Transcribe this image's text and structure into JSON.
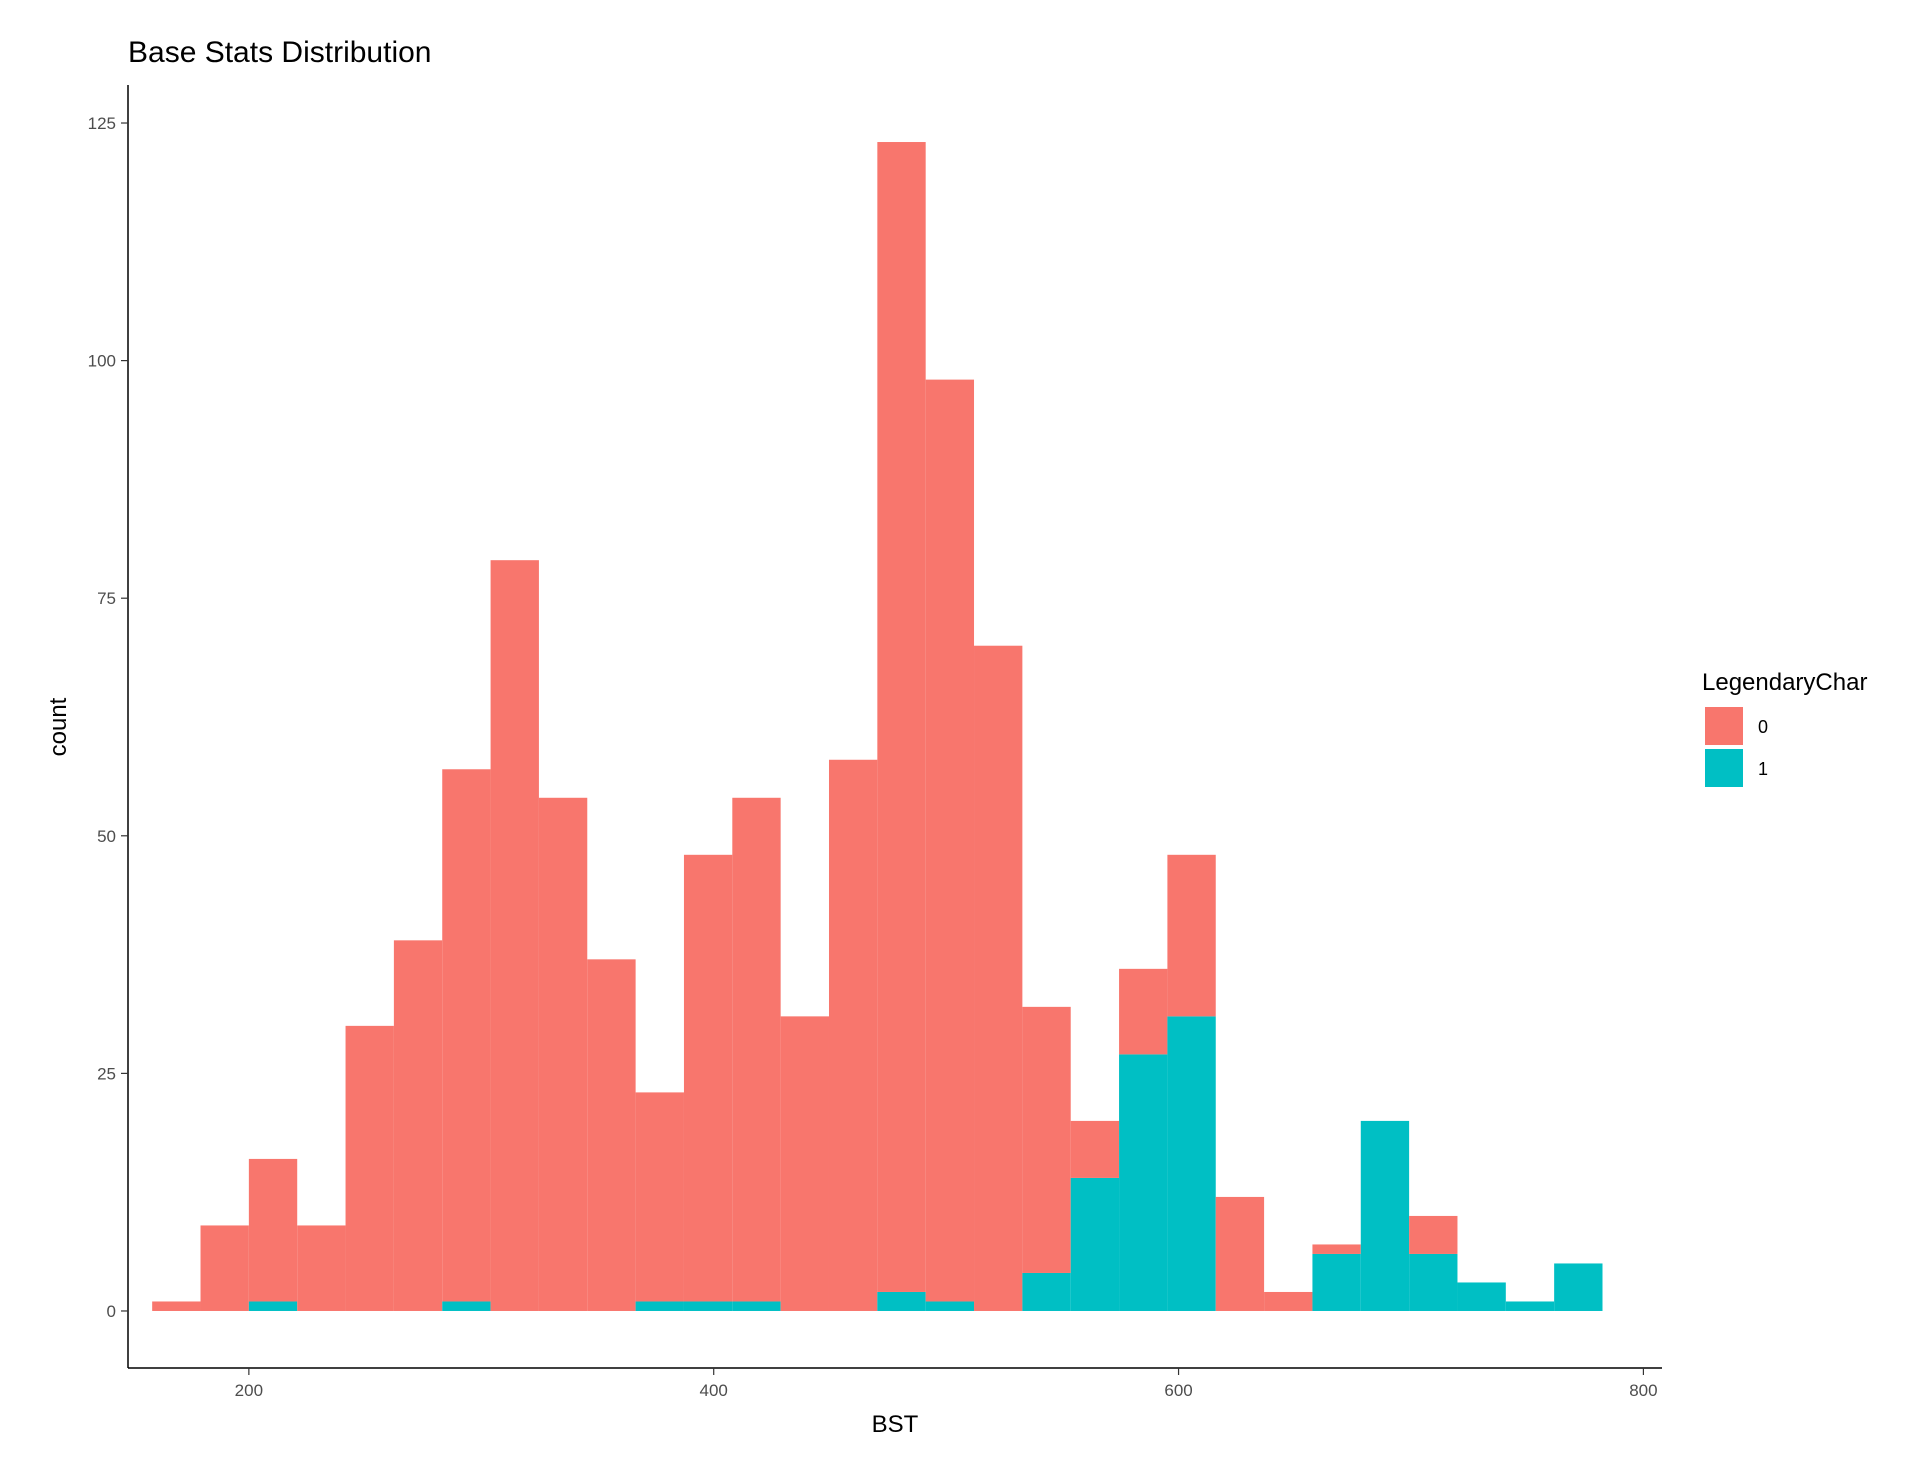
{
  "chart_data": {
    "type": "bar",
    "subtype": "stacked-histogram",
    "title": "Base Stats Distribution",
    "xlabel": "BST",
    "ylabel": "count",
    "xlim": [
      148,
      808
    ],
    "ylim": [
      -6,
      129
    ],
    "x_ticks": [
      200,
      400,
      600,
      800
    ],
    "y_ticks": [
      0,
      25,
      50,
      75,
      100,
      125
    ],
    "grid": false,
    "legend": {
      "title": "LegendaryChar",
      "position": "right"
    },
    "bin_width": 20.8,
    "bin_starts": [
      158.4,
      179.2,
      200.0,
      220.8,
      241.6,
      262.4,
      283.2,
      304.0,
      324.8,
      345.6,
      366.4,
      387.2,
      408.0,
      428.8,
      449.6,
      470.4,
      491.2,
      512.0,
      532.8,
      553.6,
      574.4,
      595.2,
      616.0,
      636.8,
      657.6,
      678.4,
      699.2,
      720.0,
      740.8,
      761.6
    ],
    "series": [
      {
        "name": "0",
        "color": "#F8766D",
        "values": [
          1,
          9,
          15,
          9,
          30,
          39,
          56,
          79,
          54,
          37,
          22,
          47,
          53,
          31,
          58,
          121,
          97,
          70,
          28,
          6,
          9,
          17,
          12,
          2,
          1,
          0,
          4,
          0,
          0,
          0
        ]
      },
      {
        "name": "1",
        "color": "#00BFC4",
        "values": [
          0,
          0,
          1,
          0,
          0,
          0,
          1,
          0,
          0,
          0,
          1,
          1,
          1,
          0,
          0,
          2,
          1,
          0,
          4,
          14,
          27,
          31,
          0,
          0,
          6,
          20,
          6,
          3,
          1,
          5
        ]
      }
    ]
  }
}
